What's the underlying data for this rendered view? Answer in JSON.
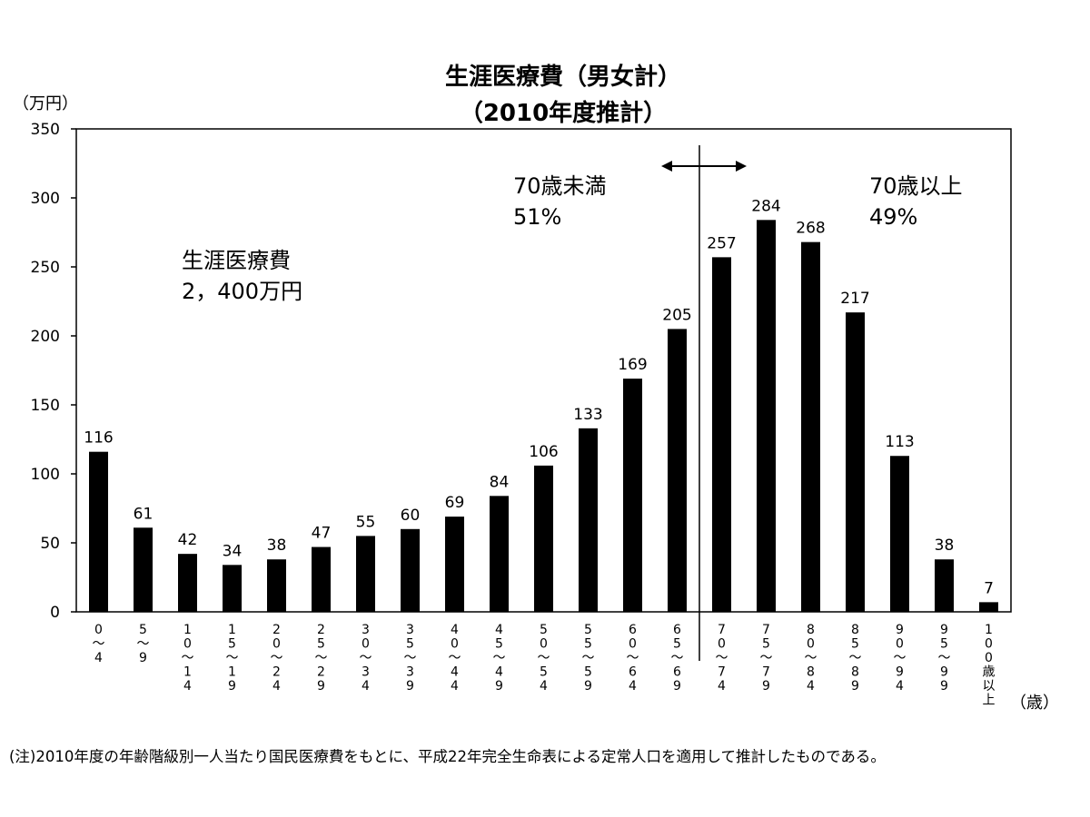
{
  "chart_data": {
    "type": "bar",
    "title": "生涯医療費（男女計）",
    "subtitle": "（2010年度推計）",
    "ylabel": "（万円）",
    "xlabel": "（歳）",
    "ylim": [
      0,
      350
    ],
    "yticks": [
      0,
      50,
      100,
      150,
      200,
      250,
      300,
      350
    ],
    "categories": [
      "0～4",
      "5～9",
      "10～14",
      "15～19",
      "20～24",
      "25～29",
      "30～34",
      "35～39",
      "40～44",
      "45～49",
      "50～54",
      "55～59",
      "60～64",
      "65～69",
      "70～74",
      "75～79",
      "80～84",
      "85～89",
      "90～94",
      "95～99",
      "100歳以上"
    ],
    "category_chars": [
      [
        "0",
        "～",
        "4"
      ],
      [
        "5",
        "～",
        "9"
      ],
      [
        "1",
        "0",
        "～",
        "1",
        "4"
      ],
      [
        "1",
        "5",
        "～",
        "1",
        "9"
      ],
      [
        "2",
        "0",
        "～",
        "2",
        "4"
      ],
      [
        "2",
        "5",
        "～",
        "2",
        "9"
      ],
      [
        "3",
        "0",
        "～",
        "3",
        "4"
      ],
      [
        "3",
        "5",
        "～",
        "3",
        "9"
      ],
      [
        "4",
        "0",
        "～",
        "4",
        "4"
      ],
      [
        "4",
        "5",
        "～",
        "4",
        "9"
      ],
      [
        "5",
        "0",
        "～",
        "5",
        "4"
      ],
      [
        "5",
        "5",
        "～",
        "5",
        "9"
      ],
      [
        "6",
        "0",
        "～",
        "6",
        "4"
      ],
      [
        "6",
        "5",
        "～",
        "6",
        "9"
      ],
      [
        "7",
        "0",
        "～",
        "7",
        "4"
      ],
      [
        "7",
        "5",
        "～",
        "7",
        "9"
      ],
      [
        "8",
        "0",
        "～",
        "8",
        "4"
      ],
      [
        "8",
        "5",
        "～",
        "8",
        "9"
      ],
      [
        "9",
        "0",
        "～",
        "9",
        "4"
      ],
      [
        "9",
        "5",
        "～",
        "9",
        "9"
      ],
      [
        "1",
        "0",
        "0",
        "歳",
        "以",
        "上"
      ]
    ],
    "values": [
      116,
      61,
      42,
      34,
      38,
      47,
      55,
      60,
      69,
      84,
      106,
      133,
      169,
      205,
      257,
      284,
      268,
      217,
      113,
      38,
      7
    ],
    "divider_after_index": 13,
    "bar_color": "#000000",
    "annotations": {
      "total_label": "生涯医療費",
      "total_value": "2，400万円",
      "under70_label": "70歳未満",
      "under70_value": "51%",
      "over70_label": "70歳以上",
      "over70_value": "49%"
    },
    "note": "(注)2010年度の年齢階級別一人当たり国民医療費をもとに、平成22年完全生命表による定常人口を適用して推計したものである。"
  }
}
